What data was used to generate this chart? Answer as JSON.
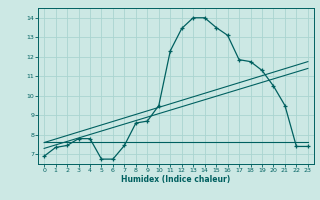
{
  "bg_color": "#cce8e4",
  "grid_color": "#aad4d0",
  "line_color": "#006060",
  "xlabel": "Humidex (Indice chaleur)",
  "xlim": [
    -0.5,
    23.5
  ],
  "ylim": [
    6.5,
    14.5
  ],
  "yticks": [
    7,
    8,
    9,
    10,
    11,
    12,
    13,
    14
  ],
  "xticks": [
    0,
    1,
    2,
    3,
    4,
    5,
    6,
    7,
    8,
    9,
    10,
    11,
    12,
    13,
    14,
    15,
    16,
    17,
    18,
    19,
    20,
    21,
    22,
    23
  ],
  "series1_x": [
    0,
    1,
    2,
    3,
    4,
    5,
    6,
    7,
    8,
    9,
    10,
    11,
    12,
    13,
    14,
    15,
    16,
    17,
    18,
    19,
    20,
    21,
    22,
    23
  ],
  "series1_y": [
    6.9,
    7.35,
    7.45,
    7.8,
    7.8,
    6.75,
    6.75,
    7.45,
    8.6,
    8.7,
    9.5,
    12.3,
    13.45,
    14.0,
    14.0,
    13.5,
    13.1,
    11.85,
    11.75,
    11.3,
    10.5,
    9.5,
    7.4,
    7.4
  ],
  "series2_x": [
    0,
    23
  ],
  "series2_y": [
    7.6,
    11.75
  ],
  "series3_x": [
    0,
    23
  ],
  "series3_y": [
    7.3,
    11.4
  ],
  "series4_x": [
    0,
    22,
    23
  ],
  "series4_y": [
    7.65,
    7.65,
    7.65
  ]
}
